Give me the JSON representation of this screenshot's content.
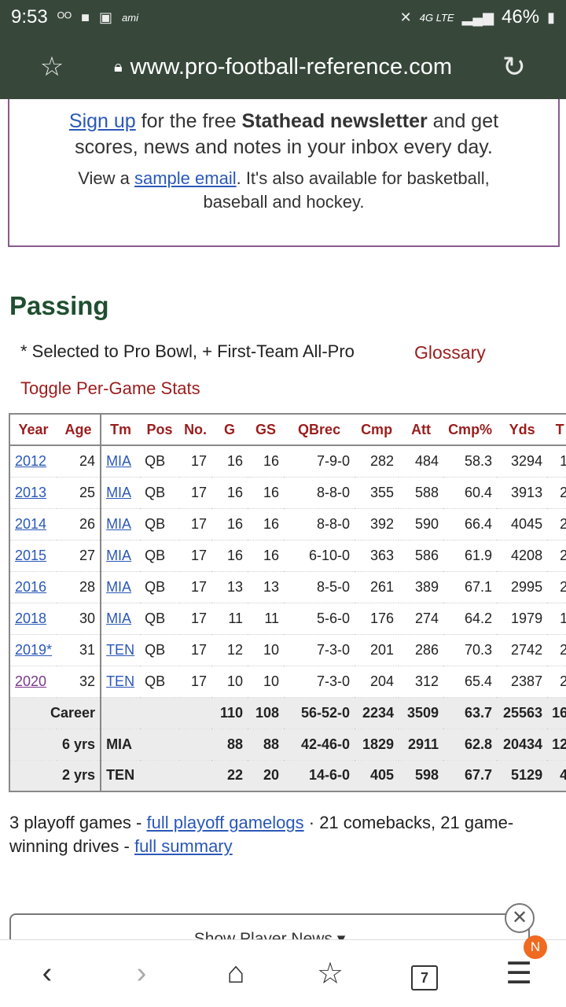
{
  "status": {
    "time": "9:53",
    "voicemail_icon": "voicemail-icon",
    "ami": "ami",
    "signal": "4G LTE",
    "battery": "46%"
  },
  "browser": {
    "url": "www.pro-football-reference.com"
  },
  "newsletter": {
    "signup_link": "Sign up",
    "line1_rest": " for the free ",
    "line1_bold": "Stathead newsletter",
    "line1_end": " and get scores, news and notes in your inbox every day.",
    "line2_start": "View a ",
    "sample_link": "sample email",
    "line2_end": ". It's also available for basketball, baseball and hockey."
  },
  "section": {
    "title": "Passing",
    "legend": "* Selected to Pro Bowl, + First-Team All-Pro",
    "glossary": "Glossary",
    "toggle": "Toggle Per-Game Stats"
  },
  "table": {
    "headers": [
      "Year",
      "Age",
      "Tm",
      "Pos",
      "No.",
      "G",
      "GS",
      "QBrec",
      "Cmp",
      "Att",
      "Cmp%",
      "Yds",
      "T"
    ],
    "rows": [
      [
        "2012",
        "24",
        "MIA",
        "QB",
        "17",
        "16",
        "16",
        "7-9-0",
        "282",
        "484",
        "58.3",
        "3294",
        "1"
      ],
      [
        "2013",
        "25",
        "MIA",
        "QB",
        "17",
        "16",
        "16",
        "8-8-0",
        "355",
        "588",
        "60.4",
        "3913",
        "2"
      ],
      [
        "2014",
        "26",
        "MIA",
        "QB",
        "17",
        "16",
        "16",
        "8-8-0",
        "392",
        "590",
        "66.4",
        "4045",
        "2"
      ],
      [
        "2015",
        "27",
        "MIA",
        "QB",
        "17",
        "16",
        "16",
        "6-10-0",
        "363",
        "586",
        "61.9",
        "4208",
        "2"
      ],
      [
        "2016",
        "28",
        "MIA",
        "QB",
        "17",
        "13",
        "13",
        "8-5-0",
        "261",
        "389",
        "67.1",
        "2995",
        "2"
      ],
      [
        "2018",
        "30",
        "MIA",
        "QB",
        "17",
        "11",
        "11",
        "5-6-0",
        "176",
        "274",
        "64.2",
        "1979",
        "1"
      ],
      [
        "2019*",
        "31",
        "TEN",
        "QB",
        "17",
        "12",
        "10",
        "7-3-0",
        "201",
        "286",
        "70.3",
        "2742",
        "2"
      ],
      [
        "2020",
        "32",
        "TEN",
        "QB",
        "17",
        "10",
        "10",
        "7-3-0",
        "204",
        "312",
        "65.4",
        "2387",
        "2"
      ]
    ],
    "summary": [
      [
        "Career",
        "",
        "",
        "110",
        "108",
        "56-52-0",
        "2234",
        "3509",
        "63.7",
        "25563",
        "16"
      ],
      [
        "6 yrs",
        "MIA",
        "",
        "88",
        "88",
        "42-46-0",
        "1829",
        "2911",
        "62.8",
        "20434",
        "12"
      ],
      [
        "2 yrs",
        "TEN",
        "",
        "22",
        "20",
        "14-6-0",
        "405",
        "598",
        "67.7",
        "5129",
        "4"
      ]
    ]
  },
  "footer": {
    "text1": "3 playoff games - ",
    "playoff_link": "full playoff gamelogs",
    "text2": " · 21 comebacks, 21 game-winning drives - ",
    "summary_link": "full summary"
  },
  "player_news": {
    "label": "Show Player News ▾"
  },
  "nav": {
    "tabs_count": "7",
    "badge": "N"
  }
}
